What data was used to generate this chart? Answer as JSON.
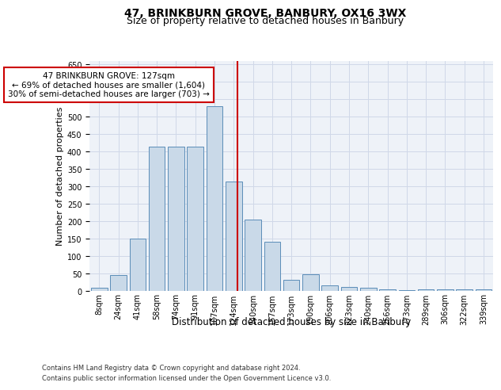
{
  "title": "47, BRINKBURN GROVE, BANBURY, OX16 3WX",
  "subtitle": "Size of property relative to detached houses in Banbury",
  "xlabel": "Distribution of detached houses by size in Banbury",
  "ylabel": "Number of detached properties",
  "categories": [
    "8sqm",
    "24sqm",
    "41sqm",
    "58sqm",
    "74sqm",
    "91sqm",
    "107sqm",
    "124sqm",
    "140sqm",
    "157sqm",
    "173sqm",
    "190sqm",
    "206sqm",
    "223sqm",
    "240sqm",
    "256sqm",
    "273sqm",
    "289sqm",
    "306sqm",
    "322sqm",
    "339sqm"
  ],
  "values": [
    8,
    45,
    150,
    415,
    415,
    415,
    530,
    315,
    205,
    142,
    33,
    47,
    15,
    12,
    8,
    4,
    2,
    5,
    5,
    5,
    5
  ],
  "bar_color": "#c9d9e8",
  "bar_edge_color": "#5b8db8",
  "vline_color": "#cc0000",
  "marker_label": "47 BRINKBURN GROVE: 127sqm",
  "annotation_line1": "← 69% of detached houses are smaller (1,604)",
  "annotation_line2": "30% of semi-detached houses are larger (703) →",
  "ylim": [
    0,
    660
  ],
  "yticks": [
    0,
    50,
    100,
    150,
    200,
    250,
    300,
    350,
    400,
    450,
    500,
    550,
    600,
    650
  ],
  "grid_color": "#d0d8e8",
  "background_color": "#eef2f8",
  "annotation_box_color": "#ffffff",
  "annotation_box_edge": "#cc0000",
  "footer_line1": "Contains HM Land Registry data © Crown copyright and database right 2024.",
  "footer_line2": "Contains public sector information licensed under the Open Government Licence v3.0.",
  "title_fontsize": 10,
  "subtitle_fontsize": 9,
  "ylabel_fontsize": 8,
  "xlabel_fontsize": 8.5,
  "tick_fontsize": 7,
  "footer_fontsize": 6,
  "annot_fontsize": 7.5
}
